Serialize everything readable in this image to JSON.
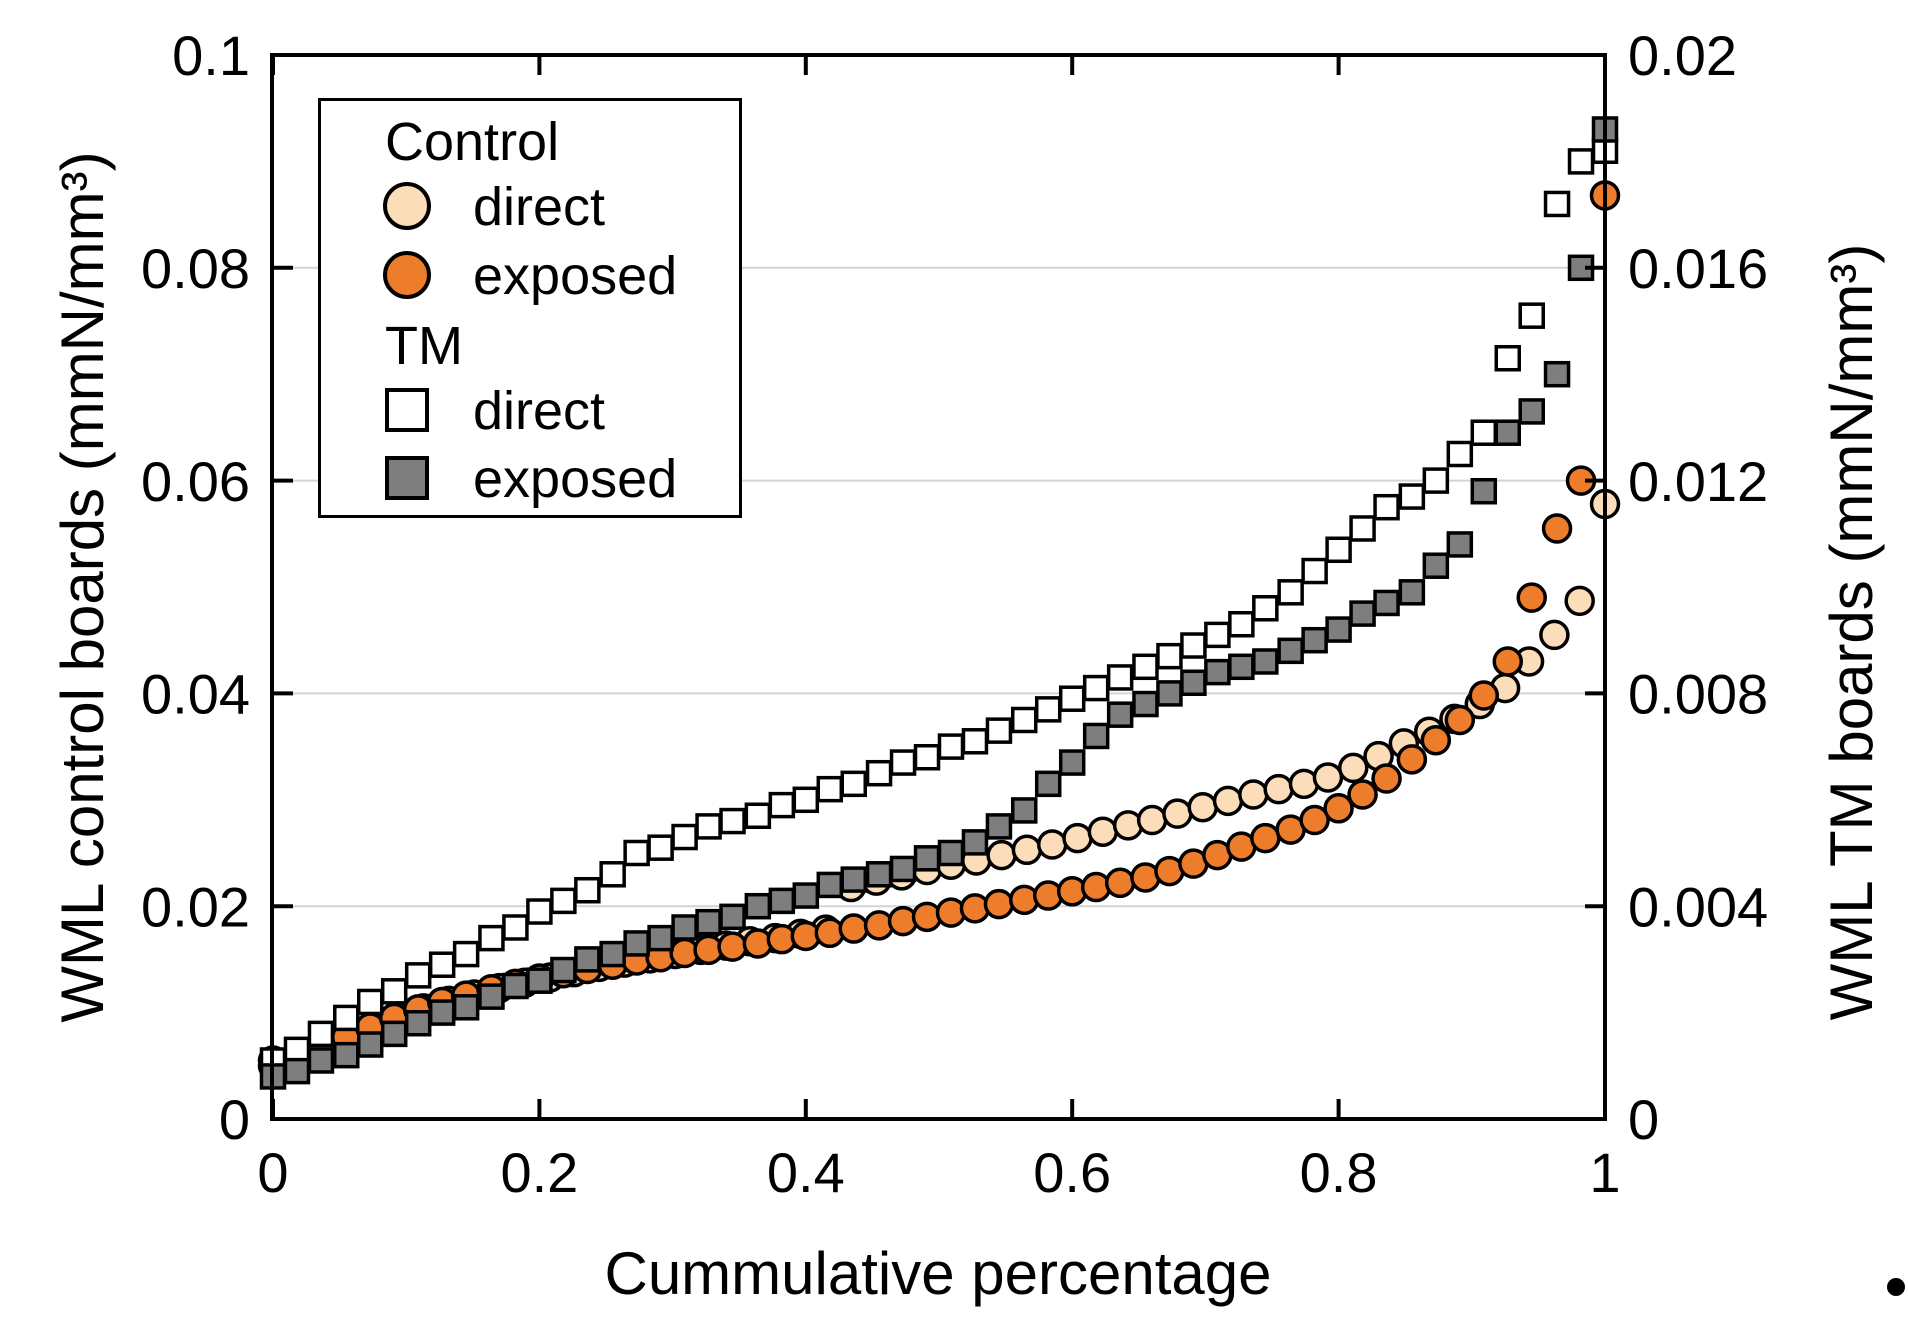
{
  "chart_data": {
    "type": "scatter",
    "title": "",
    "xlabel": "Cummulative percentage",
    "ylabel_left": "WML control boards (mmN/mm³)",
    "ylabel_right": "WML TM boards (mmN/mm³)",
    "xlim": [
      0,
      1
    ],
    "left_ylim": [
      0,
      0.1
    ],
    "right_ylim": [
      0,
      0.02
    ],
    "grid": "horizontal",
    "x_ticks": [
      0,
      0.2,
      0.4,
      0.6,
      0.8,
      1
    ],
    "x_tick_labels": [
      "0",
      "0.2",
      "0.4",
      "0.6",
      "0.8",
      "1"
    ],
    "left_ticks": [
      0,
      0.02,
      0.04,
      0.06,
      0.08,
      0.1
    ],
    "left_tick_labels": [
      "0",
      "0.02",
      "0.04",
      "0.06",
      "0.08",
      "0.1"
    ],
    "right_ticks": [
      0,
      0.004,
      0.008,
      0.012,
      0.016,
      0.02
    ],
    "right_tick_labels": [
      "0",
      "0.004",
      "0.008",
      "0.012",
      "0.016",
      "0.02"
    ],
    "colors": {
      "control_direct": "#FBDDBA",
      "control_exposed": "#ED7D2B",
      "tm_direct": "#FFFFFF",
      "tm_exposed": "#7E7E7E",
      "marker_edge": "#000000",
      "gridline": "#D4D4D4"
    },
    "legend": {
      "position": "top-left",
      "groups": [
        {
          "header": "Control",
          "entries": [
            {
              "label": "direct"
            },
            {
              "label": "exposed"
            }
          ]
        },
        {
          "header": "TM",
          "entries": [
            {
              "label": "direct"
            },
            {
              "label": "exposed"
            }
          ]
        }
      ]
    },
    "series": [
      {
        "name": "Control direct",
        "axis": "left",
        "marker": "circle",
        "fill": "#FBDDBA",
        "size": 27,
        "points": [
          [
            0.0,
            0.0055
          ],
          [
            0.019,
            0.0063
          ],
          [
            0.038,
            0.0072
          ],
          [
            0.057,
            0.008
          ],
          [
            0.075,
            0.0088
          ],
          [
            0.094,
            0.0096
          ],
          [
            0.113,
            0.0104
          ],
          [
            0.132,
            0.0111
          ],
          [
            0.151,
            0.0117
          ],
          [
            0.17,
            0.0123
          ],
          [
            0.189,
            0.0128
          ],
          [
            0.208,
            0.0133
          ],
          [
            0.226,
            0.0138
          ],
          [
            0.245,
            0.0143
          ],
          [
            0.264,
            0.0147
          ],
          [
            0.283,
            0.0151
          ],
          [
            0.302,
            0.0155
          ],
          [
            0.321,
            0.0159
          ],
          [
            0.34,
            0.0163
          ],
          [
            0.358,
            0.0167
          ],
          [
            0.377,
            0.017
          ],
          [
            0.396,
            0.0174
          ],
          [
            0.415,
            0.0178
          ],
          [
            0.434,
            0.0218
          ],
          [
            0.453,
            0.0224
          ],
          [
            0.472,
            0.0229
          ],
          [
            0.491,
            0.0234
          ],
          [
            0.509,
            0.0239
          ],
          [
            0.528,
            0.0243
          ],
          [
            0.547,
            0.0248
          ],
          [
            0.566,
            0.0253
          ],
          [
            0.585,
            0.0258
          ],
          [
            0.604,
            0.0264
          ],
          [
            0.623,
            0.027
          ],
          [
            0.642,
            0.0276
          ],
          [
            0.66,
            0.0281
          ],
          [
            0.679,
            0.0287
          ],
          [
            0.698,
            0.0293
          ],
          [
            0.717,
            0.0299
          ],
          [
            0.736,
            0.0305
          ],
          [
            0.755,
            0.031
          ],
          [
            0.774,
            0.0315
          ],
          [
            0.792,
            0.0321
          ],
          [
            0.811,
            0.033
          ],
          [
            0.83,
            0.0341
          ],
          [
            0.849,
            0.0353
          ],
          [
            0.868,
            0.0364
          ],
          [
            0.887,
            0.0376
          ],
          [
            0.906,
            0.039
          ],
          [
            0.925,
            0.0405
          ],
          [
            0.943,
            0.043
          ],
          [
            0.962,
            0.0455
          ],
          [
            0.981,
            0.0487
          ],
          [
            1.0,
            0.0578
          ]
        ]
      },
      {
        "name": "Control exposed",
        "axis": "left",
        "marker": "circle",
        "fill": "#ED7D2B",
        "size": 27,
        "points": [
          [
            0.0,
            0.005
          ],
          [
            0.018,
            0.006
          ],
          [
            0.036,
            0.0068
          ],
          [
            0.055,
            0.0077
          ],
          [
            0.073,
            0.0086
          ],
          [
            0.091,
            0.0095
          ],
          [
            0.109,
            0.0103
          ],
          [
            0.127,
            0.011
          ],
          [
            0.145,
            0.0116
          ],
          [
            0.164,
            0.0122
          ],
          [
            0.182,
            0.0127
          ],
          [
            0.2,
            0.0132
          ],
          [
            0.218,
            0.0137
          ],
          [
            0.236,
            0.0141
          ],
          [
            0.255,
            0.0145
          ],
          [
            0.273,
            0.0149
          ],
          [
            0.291,
            0.0152
          ],
          [
            0.309,
            0.0156
          ],
          [
            0.327,
            0.0159
          ],
          [
            0.345,
            0.0162
          ],
          [
            0.364,
            0.0165
          ],
          [
            0.382,
            0.0169
          ],
          [
            0.4,
            0.0172
          ],
          [
            0.418,
            0.0175
          ],
          [
            0.436,
            0.0179
          ],
          [
            0.455,
            0.0182
          ],
          [
            0.473,
            0.0186
          ],
          [
            0.491,
            0.019
          ],
          [
            0.509,
            0.0194
          ],
          [
            0.527,
            0.0198
          ],
          [
            0.545,
            0.0202
          ],
          [
            0.564,
            0.0206
          ],
          [
            0.582,
            0.021
          ],
          [
            0.6,
            0.0214
          ],
          [
            0.618,
            0.0218
          ],
          [
            0.636,
            0.0222
          ],
          [
            0.655,
            0.0227
          ],
          [
            0.673,
            0.0233
          ],
          [
            0.691,
            0.024
          ],
          [
            0.709,
            0.0248
          ],
          [
            0.727,
            0.0256
          ],
          [
            0.745,
            0.0264
          ],
          [
            0.764,
            0.0272
          ],
          [
            0.782,
            0.0281
          ],
          [
            0.8,
            0.0292
          ],
          [
            0.818,
            0.0305
          ],
          [
            0.836,
            0.032
          ],
          [
            0.855,
            0.0338
          ],
          [
            0.873,
            0.0356
          ],
          [
            0.891,
            0.0375
          ],
          [
            0.909,
            0.0398
          ],
          [
            0.927,
            0.043
          ],
          [
            0.945,
            0.049
          ],
          [
            0.964,
            0.0555
          ],
          [
            0.982,
            0.06
          ],
          [
            1.0,
            0.0868
          ]
        ]
      },
      {
        "name": "TM direct",
        "axis": "right",
        "marker": "square",
        "fill": "#FFFFFF",
        "size": 23,
        "points": [
          [
            0.0,
            0.0011
          ],
          [
            0.018,
            0.0013
          ],
          [
            0.036,
            0.0016
          ],
          [
            0.055,
            0.0019
          ],
          [
            0.073,
            0.0022
          ],
          [
            0.091,
            0.0024
          ],
          [
            0.109,
            0.0027
          ],
          [
            0.127,
            0.0029
          ],
          [
            0.145,
            0.0031
          ],
          [
            0.164,
            0.0034
          ],
          [
            0.182,
            0.0036
          ],
          [
            0.2,
            0.0039
          ],
          [
            0.218,
            0.0041
          ],
          [
            0.236,
            0.0043
          ],
          [
            0.255,
            0.0046
          ],
          [
            0.273,
            0.005
          ],
          [
            0.291,
            0.0051
          ],
          [
            0.309,
            0.0053
          ],
          [
            0.327,
            0.0055
          ],
          [
            0.345,
            0.0056
          ],
          [
            0.364,
            0.0057
          ],
          [
            0.382,
            0.0059
          ],
          [
            0.4,
            0.006
          ],
          [
            0.418,
            0.0062
          ],
          [
            0.436,
            0.0063
          ],
          [
            0.455,
            0.0065
          ],
          [
            0.473,
            0.0067
          ],
          [
            0.491,
            0.0068
          ],
          [
            0.509,
            0.007
          ],
          [
            0.527,
            0.0071
          ],
          [
            0.545,
            0.0073
          ],
          [
            0.564,
            0.0075
          ],
          [
            0.582,
            0.0077
          ],
          [
            0.6,
            0.0079
          ],
          [
            0.618,
            0.0081
          ],
          [
            0.636,
            0.0083
          ],
          [
            0.655,
            0.0085
          ],
          [
            0.673,
            0.0087
          ],
          [
            0.691,
            0.0089
          ],
          [
            0.709,
            0.0091
          ],
          [
            0.727,
            0.0093
          ],
          [
            0.745,
            0.0096
          ],
          [
            0.764,
            0.0099
          ],
          [
            0.782,
            0.0103
          ],
          [
            0.8,
            0.0107
          ],
          [
            0.818,
            0.0111
          ],
          [
            0.836,
            0.0115
          ],
          [
            0.855,
            0.0117
          ],
          [
            0.873,
            0.012
          ],
          [
            0.891,
            0.0125
          ],
          [
            0.909,
            0.0129
          ],
          [
            0.927,
            0.0143
          ],
          [
            0.945,
            0.0151
          ],
          [
            0.964,
            0.0172
          ],
          [
            0.982,
            0.018
          ],
          [
            1.0,
            0.0182
          ]
        ]
      },
      {
        "name": "TM exposed",
        "axis": "right",
        "marker": "square",
        "fill": "#7E7E7E",
        "size": 23,
        "points": [
          [
            0.0,
            0.0008
          ],
          [
            0.018,
            0.0009
          ],
          [
            0.036,
            0.0011
          ],
          [
            0.055,
            0.0012
          ],
          [
            0.073,
            0.0014
          ],
          [
            0.091,
            0.0016
          ],
          [
            0.109,
            0.0018
          ],
          [
            0.127,
            0.002
          ],
          [
            0.145,
            0.0021
          ],
          [
            0.164,
            0.0023
          ],
          [
            0.182,
            0.0025
          ],
          [
            0.2,
            0.0026
          ],
          [
            0.218,
            0.0028
          ],
          [
            0.236,
            0.003
          ],
          [
            0.255,
            0.0031
          ],
          [
            0.273,
            0.0033
          ],
          [
            0.291,
            0.0034
          ],
          [
            0.309,
            0.0036
          ],
          [
            0.327,
            0.0037
          ],
          [
            0.345,
            0.0038
          ],
          [
            0.364,
            0.004
          ],
          [
            0.382,
            0.0041
          ],
          [
            0.4,
            0.0042
          ],
          [
            0.418,
            0.0044
          ],
          [
            0.436,
            0.0045
          ],
          [
            0.455,
            0.0046
          ],
          [
            0.473,
            0.0047
          ],
          [
            0.491,
            0.0049
          ],
          [
            0.509,
            0.005
          ],
          [
            0.527,
            0.0052
          ],
          [
            0.545,
            0.0055
          ],
          [
            0.564,
            0.0058
          ],
          [
            0.582,
            0.0063
          ],
          [
            0.6,
            0.0067
          ],
          [
            0.618,
            0.0072
          ],
          [
            0.636,
            0.0076
          ],
          [
            0.655,
            0.0078
          ],
          [
            0.673,
            0.008
          ],
          [
            0.691,
            0.0082
          ],
          [
            0.709,
            0.0084
          ],
          [
            0.727,
            0.0085
          ],
          [
            0.745,
            0.0086
          ],
          [
            0.764,
            0.0088
          ],
          [
            0.782,
            0.009
          ],
          [
            0.8,
            0.0092
          ],
          [
            0.818,
            0.0095
          ],
          [
            0.836,
            0.0097
          ],
          [
            0.855,
            0.0099
          ],
          [
            0.873,
            0.0104
          ],
          [
            0.891,
            0.0108
          ],
          [
            0.909,
            0.0118
          ],
          [
            0.927,
            0.0129
          ],
          [
            0.945,
            0.0133
          ],
          [
            0.964,
            0.014
          ],
          [
            0.982,
            0.016
          ],
          [
            1.0,
            0.0186
          ]
        ]
      }
    ]
  }
}
